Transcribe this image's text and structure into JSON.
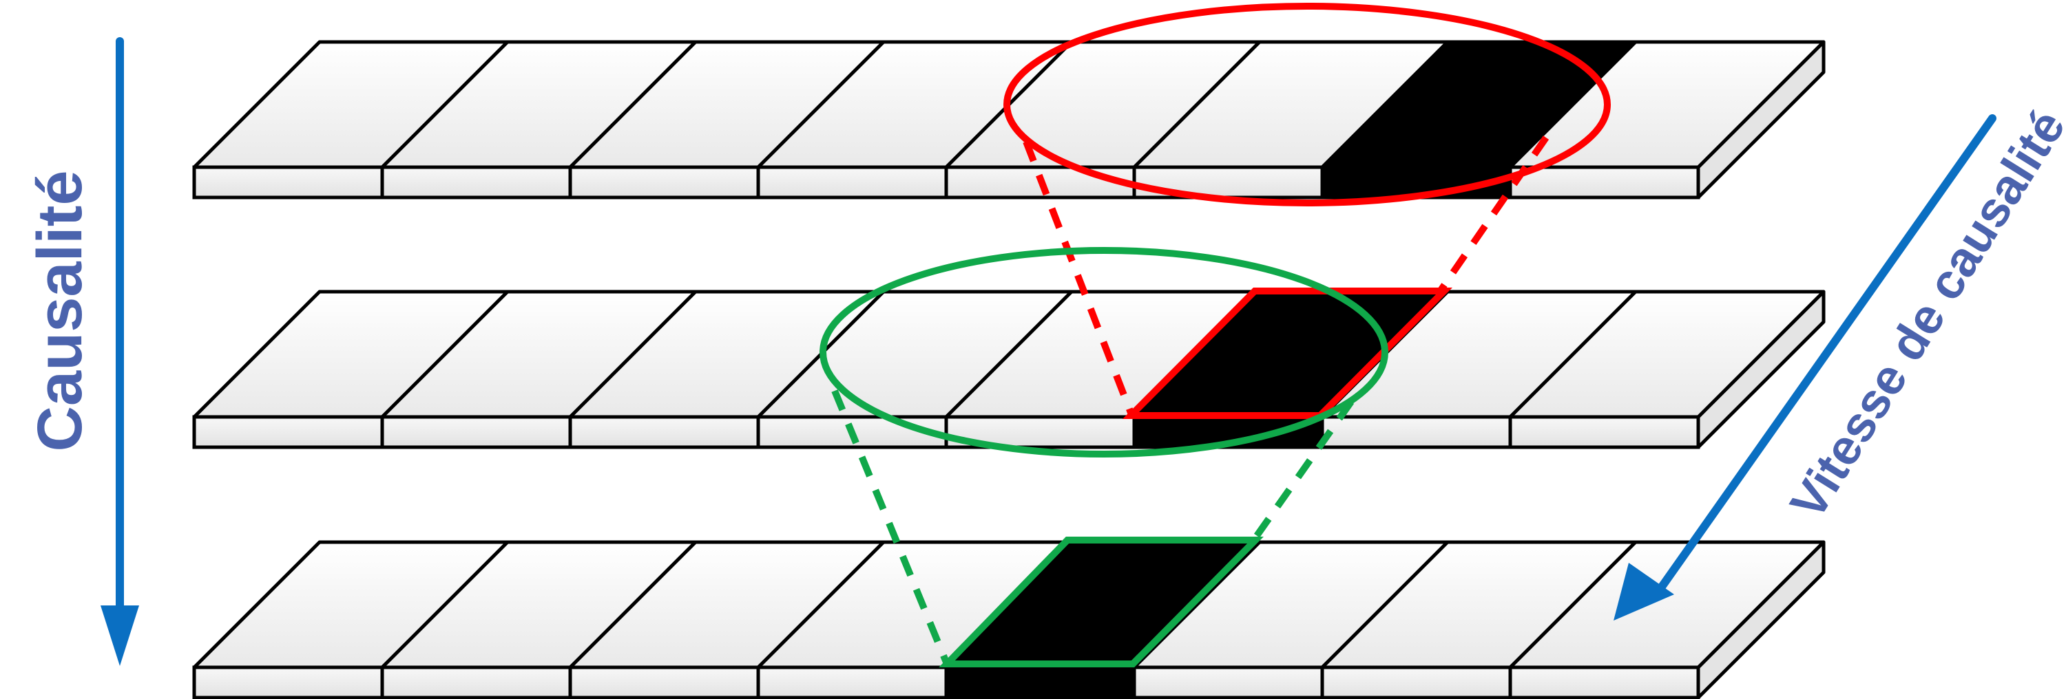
{
  "labels": {
    "causality": "Causalité",
    "causality_speed": "Vitesse de causalité"
  },
  "colors": {
    "arrow": "#0a6fc2",
    "label_text": "#4b63ad",
    "red": "#ff0000",
    "green": "#10a84a",
    "cell_top": "#f5f5f5",
    "cell_side": "#efefef",
    "filled": "#000000",
    "outline": "#000000"
  },
  "strips": [
    {
      "layer": "top",
      "filled_cells": [
        6
      ]
    },
    {
      "layer": "middle",
      "filled_cells": [
        5
      ]
    },
    {
      "layer": "bottom",
      "filled_cells": [
        4
      ]
    }
  ],
  "cells_per_strip": 8
}
